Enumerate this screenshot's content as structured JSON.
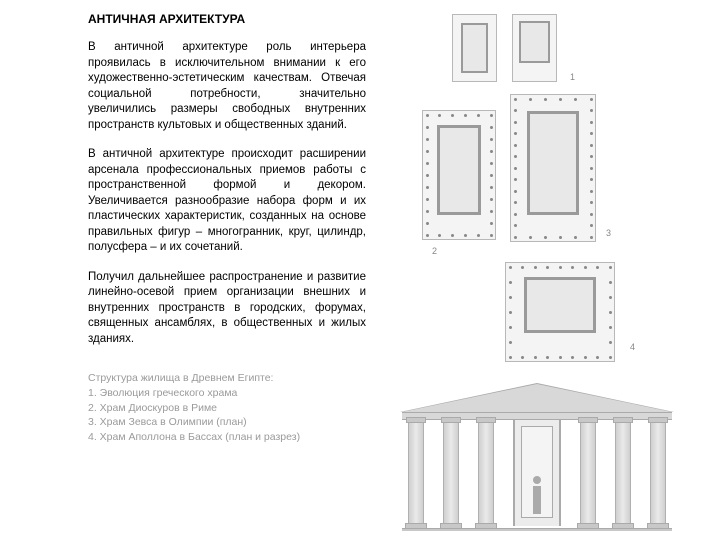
{
  "title": "АНТИЧНАЯ АРХИТЕКТУРА",
  "paragraphs": [
    "В античной архитектуре роль интерьера проявилась в исключительном внимании к его художественно-эстетическим качествам. Отвечая социальной потребности, значительно увеличились размеры свободных внутренних пространств культовых и общественных зданий.",
    "В античной архитектуре происходит расширении арсенала профессиональных приемов работы с пространственной формой и декором. Увеличивается разнообразие набора форм и их пластических характеристик, созданных на основе правильных фигур – многогранник, круг, цилиндр, полусфера – и их сочетаний.",
    "Получил дальнейшее распространение и развитие линейно-осевой прием организации внешних и внутренних пространств в городских, форумах, священных ансамблях, в общественных и жилых зданиях."
  ],
  "caption": {
    "heading": "Структура жилища в Древнем Египте:",
    "items": [
      "1.  Эволюция греческого храма",
      "2.  Храм Диоскуров в Риме",
      "3.  Храм Зевса в Олимпии (план)",
      "4.  Храм Аполлона в Бассах (план и разрез)"
    ]
  },
  "labels": {
    "l1": "1",
    "l2": "2",
    "l3": "3",
    "l4": "4"
  },
  "colors": {
    "text": "#000000",
    "caption": "#9a9a9a",
    "plan_border": "#b8b8b8",
    "plan_fill": "#f4f4f4",
    "plan_inner": "#9a9a9a",
    "column": "#cfcfcf",
    "background": "#ffffff"
  }
}
